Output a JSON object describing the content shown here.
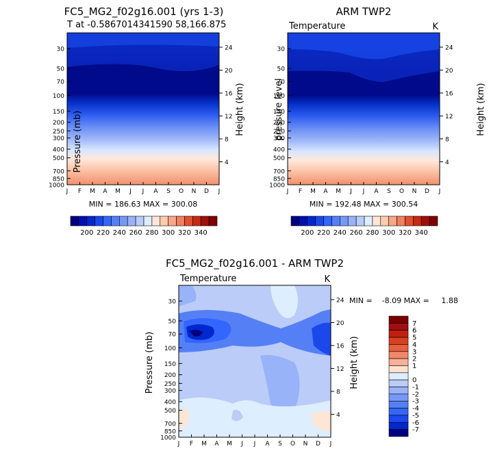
{
  "chart_data": [
    {
      "type": "heatmap",
      "title": "FC5_MG2_f02g16.001 (yrs 1-3)",
      "subtitle": "T at -0.5867014341590 58,166.875",
      "ylabel_left": "Pressure (mb)",
      "ylabel_right": "Height (km)",
      "x_ticks": [
        "J",
        "F",
        "M",
        "A",
        "M",
        "J",
        "J",
        "A",
        "S",
        "O",
        "N",
        "D",
        "J"
      ],
      "p_ticks": [
        30,
        50,
        70,
        100,
        150,
        200,
        250,
        300,
        400,
        500,
        700,
        850,
        1000
      ],
      "h_ticks": [
        24,
        20,
        16,
        12,
        8,
        4
      ],
      "stats": "MIN = 186.63 MAX = 300.08"
    },
    {
      "type": "heatmap",
      "title": "ARM TWP2",
      "label_left": "Temperature",
      "label_right": "K",
      "ylabel_left": "pressure level",
      "ylabel_right": "Height (km)",
      "x_ticks": [
        "J",
        "F",
        "M",
        "A",
        "M",
        "J",
        "J",
        "A",
        "S",
        "O",
        "N",
        "D",
        "J"
      ],
      "p_ticks": [
        30,
        50,
        70,
        100,
        150,
        200,
        250,
        300,
        400,
        500,
        700,
        850,
        1000
      ],
      "h_ticks": [
        24,
        20,
        16,
        12,
        8,
        4
      ],
      "stats": "MIN = 192.48 MAX = 300.54"
    },
    {
      "type": "heatmap",
      "title": "FC5_MG2_f02g16.001 - ARM TWP2",
      "label_left": "Temperature",
      "label_right": "K",
      "ylabel_left": "Pressure (mb)",
      "ylabel_right": "Height (km)",
      "x_ticks": [
        "J",
        "F",
        "M",
        "A",
        "M",
        "J",
        "J",
        "A",
        "S",
        "O",
        "N",
        "D",
        "J"
      ],
      "p_ticks": [
        30,
        50,
        70,
        100,
        150,
        200,
        250,
        300,
        400,
        500,
        700,
        850,
        1000
      ],
      "h_ticks": [
        24,
        20,
        16,
        12,
        8,
        4
      ],
      "stats": "MIN =    -8.09 MAX =     1.88"
    }
  ],
  "colorbar_abs": {
    "labels": [
      "200",
      "220",
      "240",
      "260",
      "280",
      "300",
      "320",
      "340"
    ],
    "colors": [
      "#000080",
      "#0010b0",
      "#0028d0",
      "#1a48ea",
      "#3366ff",
      "#5580f5",
      "#7799f5",
      "#99b3f8",
      "#bbccf8",
      "#ddeeff",
      "#ffe5d5",
      "#ffcbb0",
      "#f8a888",
      "#f08060",
      "#e05030",
      "#c82a10",
      "#a01008",
      "#800000"
    ]
  },
  "colorbar_diff": {
    "labels": [
      "7",
      "6",
      "5",
      "4",
      "3",
      "2",
      "1",
      "0",
      "-1",
      "-2",
      "-3",
      "-4",
      "-5",
      "-6",
      "-7"
    ],
    "colors": [
      "#7a0000",
      "#a01010",
      "#c02010",
      "#d84020",
      "#e86040",
      "#f08868",
      "#f8b098",
      "#fde0d0",
      "#ddeeff",
      "#bbccf8",
      "#99b3f8",
      "#7799f5",
      "#5580f5",
      "#3366ff",
      "#1a48ea",
      "#0028d0",
      "#000080"
    ]
  }
}
